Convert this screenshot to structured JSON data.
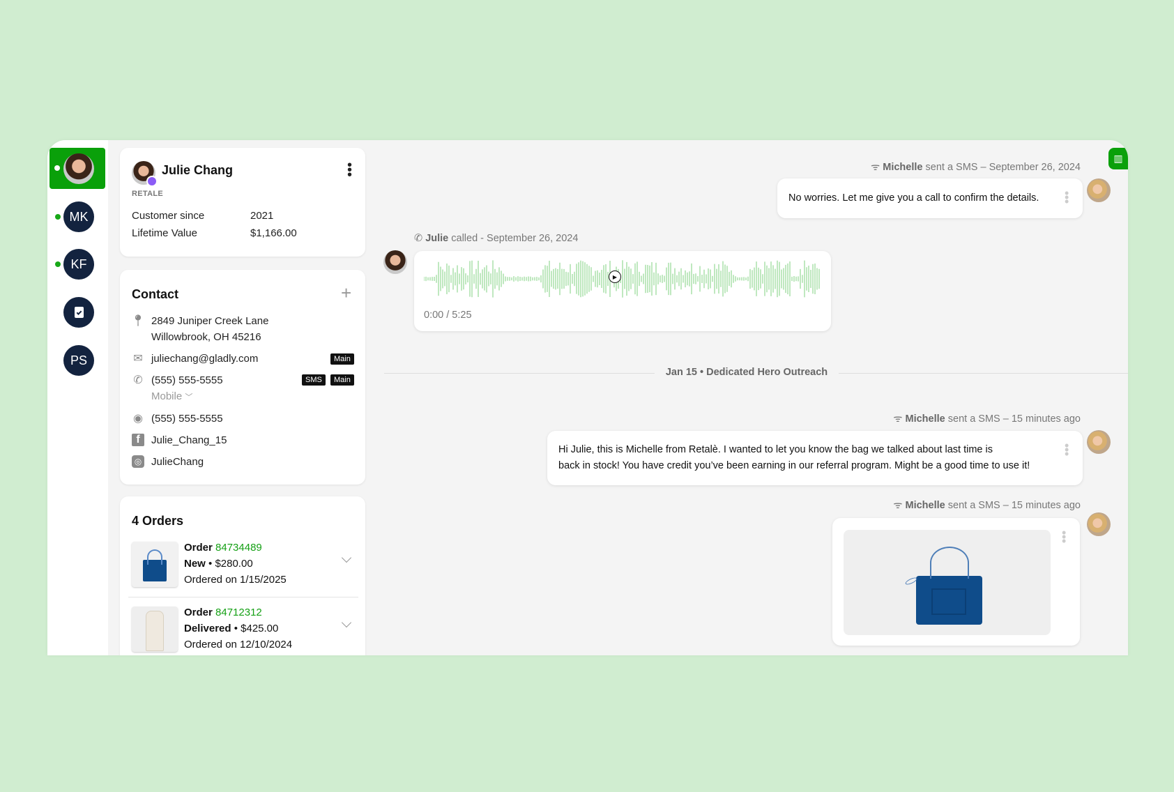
{
  "rail": {
    "items": [
      {
        "initials": "",
        "status": "online"
      },
      {
        "initials": "MK",
        "status": "online"
      },
      {
        "initials": "KF",
        "status": "online"
      },
      {
        "initials": "",
        "icon": "clipboard-check-icon"
      },
      {
        "initials": "PS"
      }
    ]
  },
  "profile": {
    "name": "Julie Chang",
    "company": "RETALE",
    "rows": [
      {
        "label": "Customer since",
        "value": "2021"
      },
      {
        "label": "Lifetime Value",
        "value": "$1,166.00"
      }
    ]
  },
  "contact": {
    "title": "Contact",
    "address_line1": "2849 Juniper Creek Lane",
    "address_line2": "Willowbrook, OH 45216",
    "email": "juliechang@gladly.com",
    "email_tag": "Main",
    "phone": "(555) 555-5555",
    "phone_tags": [
      "SMS",
      "Main"
    ],
    "phone_type": "Mobile",
    "whatsapp": "(555) 555-5555",
    "facebook": "Julie_Chang_15",
    "instagram": "JulieChang"
  },
  "orders": {
    "title": "4 Orders",
    "items": [
      {
        "label": "Order",
        "number": "84734489",
        "status": "New",
        "price": "$280.00",
        "date": "Ordered on 1/15/2025"
      },
      {
        "label": "Order",
        "number": "84712312",
        "status": "Delivered",
        "price": "$425.00",
        "date": "Ordered on 12/10/2024"
      }
    ]
  },
  "timeline": {
    "msg1": {
      "sender": "Michelle",
      "action": "sent a SMS –",
      "time": "September 26, 2024",
      "text": "No worries. Let me give you a call to confirm the details."
    },
    "call": {
      "caller": "Julie",
      "action": "called - September 26, 2024",
      "time_display": "0:00 / 5:25",
      "progress": 0
    },
    "divider": {
      "date": "Jan 15",
      "sep": "•",
      "title": "Dedicated Hero Outreach"
    },
    "msg2": {
      "sender": "Michelle",
      "action": "sent a SMS – 15 minutes ago",
      "text_line1": "Hi Julie, this is Michelle from Retalè. I wanted to let you know the bag we talked about last time is",
      "text_line2": "back in stock!  You have credit you’ve been earning in our referral program. Might be a good time to use it!"
    },
    "msg3": {
      "sender": "Michelle",
      "action": "sent a SMS – 15 minutes ago",
      "image": "blue-handbag"
    }
  },
  "colors": {
    "accent": "#0aa00a",
    "rail_avatar": "#13233f",
    "order_link": "#15a015",
    "waveform": "#7fd17f"
  }
}
